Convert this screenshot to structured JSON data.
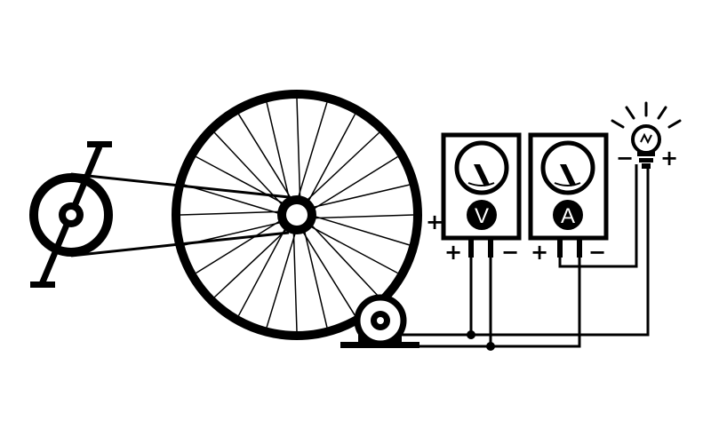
{
  "colors": {
    "ink": "#000000",
    "paper": "#ffffff"
  },
  "voltmeter": {
    "symbol": "V",
    "plus": "+",
    "minus": "−",
    "side_plus": "+"
  },
  "ammeter": {
    "symbol": "A",
    "plus": "+",
    "minus": "−"
  },
  "bulb": {
    "plus": "+",
    "minus": "−"
  },
  "components": {
    "pedal_crank": "pedal-crank-icon",
    "chain": "chain-icon",
    "wheel": "bicycle-wheel-icon",
    "generator": "generator-icon",
    "voltmeter": "voltmeter-icon",
    "ammeter": "ammeter-icon",
    "bulb": "light-bulb-icon"
  }
}
